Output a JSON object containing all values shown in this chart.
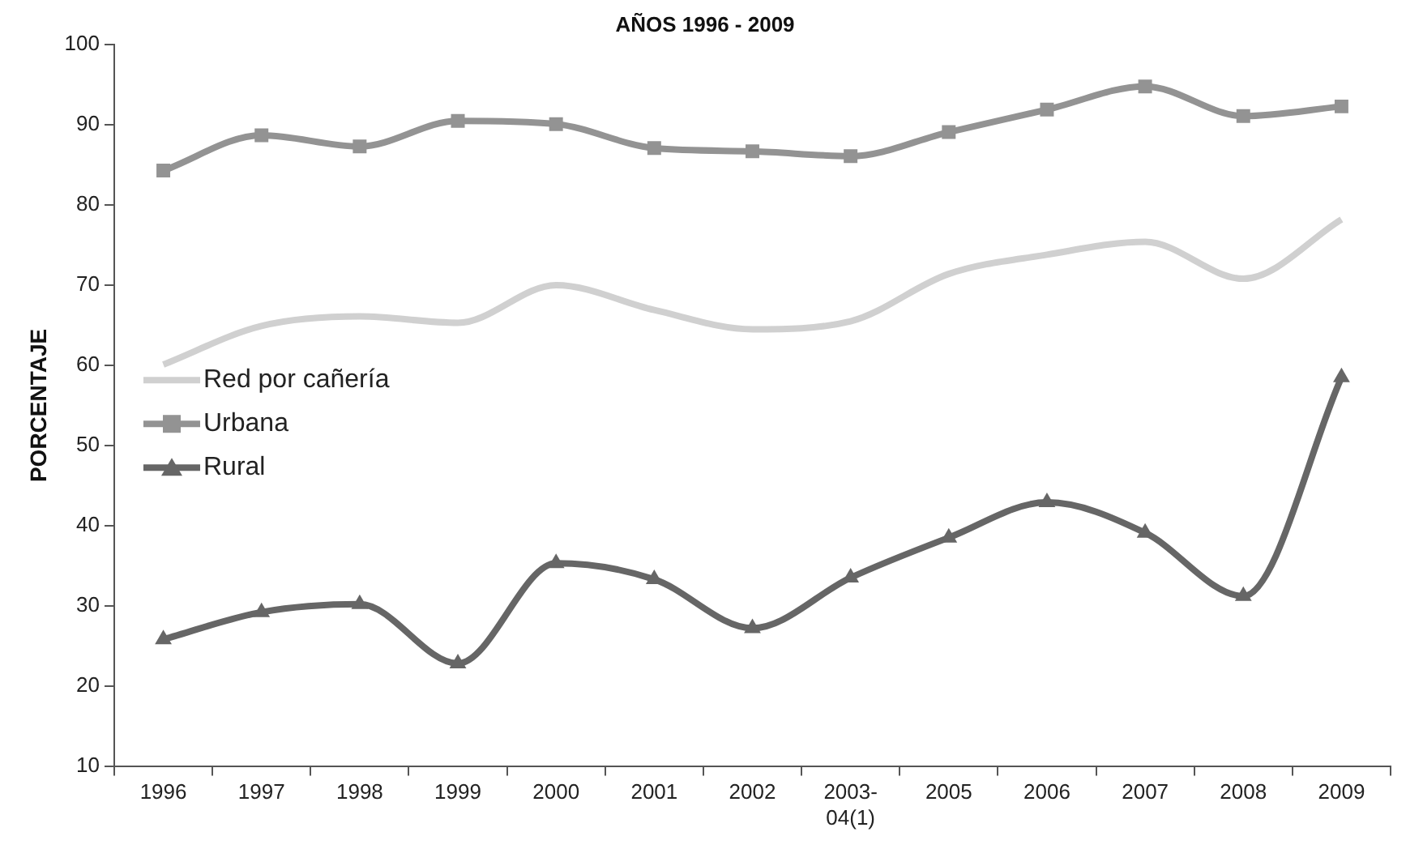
{
  "chart_data": {
    "type": "line",
    "title": "AÑOS 1996 - 2009",
    "ylabel": "PORCENTAJE",
    "categories": [
      "1996",
      "1997",
      "1998",
      "1999",
      "2000",
      "2001",
      "2002",
      "2003-04(1)",
      "2005",
      "2006",
      "2007",
      "2008",
      "2009"
    ],
    "series": [
      {
        "name": "Red por cañería",
        "color": "#d0d0d0",
        "marker": "none",
        "values": [
          60.1,
          64.9,
          66.1,
          65.3,
          70.0,
          66.9,
          64.5,
          65.5,
          71.4,
          73.8,
          75.4,
          70.8,
          78.2
        ]
      },
      {
        "name": "Urbana",
        "color": "#939393",
        "marker": "square",
        "values": [
          84.3,
          88.7,
          87.3,
          90.5,
          90.1,
          87.1,
          86.7,
          86.1,
          89.1,
          91.9,
          94.8,
          91.1,
          92.3
        ]
      },
      {
        "name": "Rural",
        "color": "#666666",
        "marker": "triangle",
        "values": [
          25.8,
          29.2,
          30.2,
          22.8,
          35.3,
          33.3,
          27.2,
          33.5,
          38.5,
          42.9,
          39.1,
          31.2,
          58.5
        ]
      }
    ],
    "ylim": [
      10,
      100
    ],
    "yticks": [
      10,
      20,
      30,
      40,
      50,
      60,
      70,
      80,
      90,
      100
    ],
    "grid": false,
    "legend": "left"
  }
}
